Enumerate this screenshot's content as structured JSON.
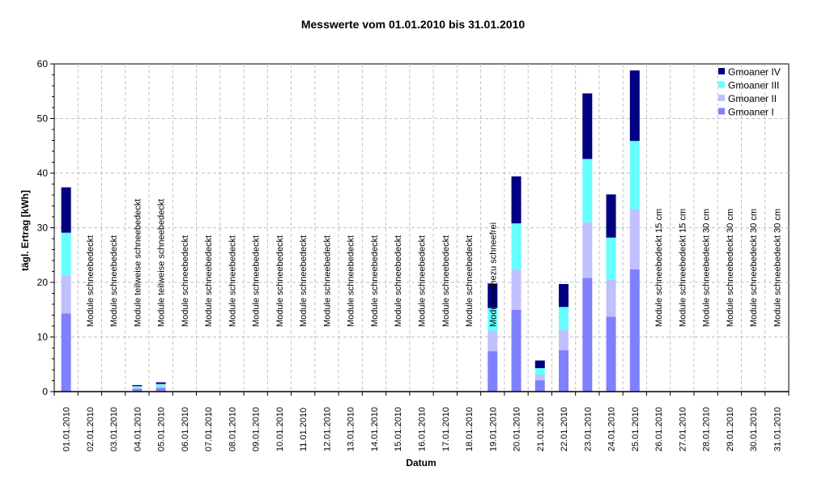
{
  "chart_data": {
    "type": "bar",
    "stacked": true,
    "title": "Messwerte vom 01.01.2010 bis 31.01.2010",
    "xlabel": "Datum",
    "ylabel": "tägl. Ertrag [kWh]",
    "ylim": [
      0,
      60
    ],
    "yticks": [
      0,
      10,
      20,
      30,
      40,
      50,
      60
    ],
    "grid": true,
    "legend_position": "top-right",
    "categories": [
      "01.01.2010",
      "02.01.2010",
      "03.01.2010",
      "04.01.2010",
      "05.01.2010",
      "06.01.2010",
      "07.01.2010",
      "08.01.2010",
      "09.01.2010",
      "10.01.2010",
      "11.01.2010",
      "12.01.2010",
      "13.01.2010",
      "14.01.2010",
      "15.01.2010",
      "16.01.2010",
      "17.01.2010",
      "18.01.2010",
      "19.01.2010",
      "20.01.2010",
      "21.01.2010",
      "22.01.2010",
      "23.01.2010",
      "24.01.2010",
      "25.01.2010",
      "26.01.2010",
      "27.01.2010",
      "28.01.2010",
      "29.01.2010",
      "30.01.2010",
      "31.01.2010"
    ],
    "series": [
      {
        "name": "Gmoaner I",
        "color": "#8080ff",
        "values": [
          14.3,
          0,
          0,
          0.5,
          0.7,
          0,
          0,
          0,
          0,
          0,
          0,
          0,
          0,
          0,
          0,
          0,
          0,
          0,
          7.4,
          15.0,
          2.1,
          7.6,
          20.8,
          13.7,
          22.4,
          0,
          0,
          0,
          0,
          0,
          0
        ]
      },
      {
        "name": "Gmoaner II",
        "color": "#c0c0ff",
        "values": [
          7.0,
          0,
          0,
          0.2,
          0.3,
          0,
          0,
          0,
          0,
          0,
          0,
          0,
          0,
          0,
          0,
          0,
          0,
          0,
          3.7,
          7.4,
          1.0,
          3.7,
          10.2,
          6.8,
          11.0,
          0,
          0,
          0,
          0,
          0,
          0
        ]
      },
      {
        "name": "Gmoaner III",
        "color": "#66ffff",
        "values": [
          7.8,
          0,
          0,
          0.3,
          0.4,
          0,
          0,
          0,
          0,
          0,
          0,
          0,
          0,
          0,
          0,
          0,
          0,
          0,
          4.2,
          8.4,
          1.2,
          4.2,
          11.6,
          7.7,
          12.5,
          0,
          0,
          0,
          0,
          0,
          0
        ]
      },
      {
        "name": "Gmoaner IV",
        "color": "#000080",
        "values": [
          8.3,
          0,
          0,
          0.2,
          0.3,
          0,
          0,
          0,
          0,
          0,
          0,
          0,
          0,
          0,
          0,
          0,
          0,
          0,
          4.5,
          8.6,
          1.4,
          4.2,
          12.0,
          7.9,
          12.9,
          0,
          0,
          0,
          0,
          0,
          0
        ]
      }
    ],
    "annotations": [
      "",
      "Module schneebedeckt",
      "Module schneebedeckt",
      "Module teilweise schneebedeckt",
      "Module teilweise schneebedeckt",
      "Module schneebedeckt",
      "Module schneebedeckt",
      "Module schneebedeckt",
      "Module schneebedeckt",
      "Module schneebedeckt",
      "Module schneebedeckt",
      "Module schneebedeckt",
      "Module schneebedeckt",
      "Module schneebedeckt",
      "Module schneebedeckt",
      "Module schneebedeckt",
      "Module schneebedeckt",
      "Module schneebedeckt",
      "Module nahezu schneefrei",
      "",
      "",
      "",
      "",
      "",
      "",
      "Module schneebedeckt 15 cm",
      "Module schneebedeckt 15 cm",
      "Module schneebedeckt 30 cm",
      "Module schneebedeckt 30 cm",
      "Module schneebedeckt 30 cm",
      "Module schneebedeckt 30 cm"
    ]
  },
  "legend": {
    "items": [
      {
        "label": "Gmoaner IV",
        "color": "#000080"
      },
      {
        "label": "Gmoaner III",
        "color": "#66ffff"
      },
      {
        "label": "Gmoaner II",
        "color": "#c0c0ff"
      },
      {
        "label": "Gmoaner I",
        "color": "#8080ff"
      }
    ]
  }
}
